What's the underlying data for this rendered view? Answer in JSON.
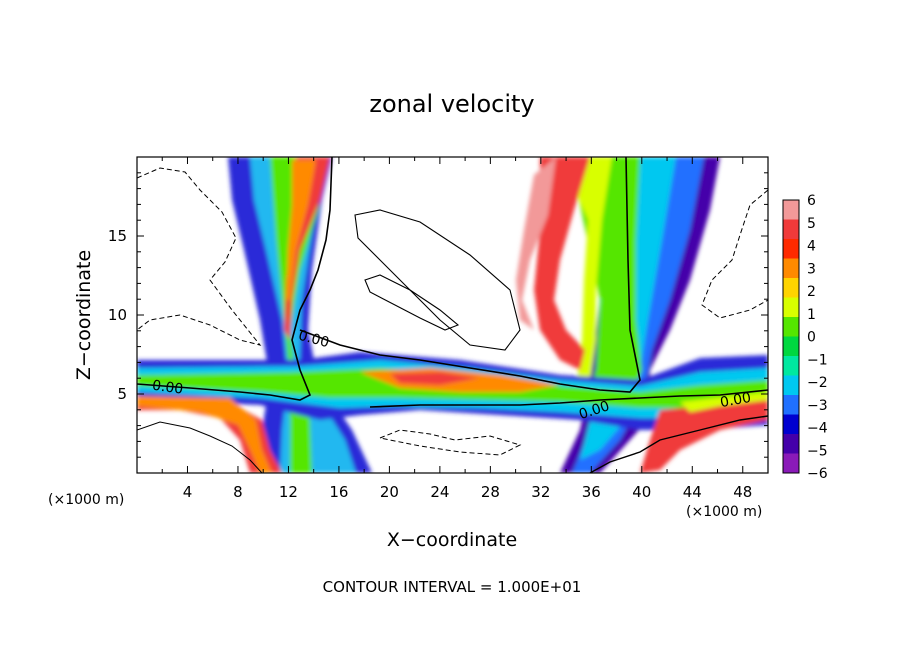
{
  "chart_data": {
    "type": "heatmap",
    "title": "zonal velocity",
    "xlabel": "X−coordinate",
    "ylabel": "Z−coordinate",
    "x_unit_left": "(×1000 m)",
    "x_unit_right": "(×1000 m)",
    "xlim": [
      0,
      50
    ],
    "ylim": [
      0,
      20
    ],
    "x_ticks": [
      4,
      8,
      12,
      16,
      20,
      24,
      28,
      32,
      36,
      40,
      44,
      48
    ],
    "x_tick_labels": [
      "4",
      "8",
      "12",
      "16",
      "20",
      "24",
      "28",
      "32",
      "36",
      "40",
      "44",
      "48"
    ],
    "y_ticks": [
      5,
      10,
      15
    ],
    "y_tick_labels": [
      "5",
      "10",
      "15"
    ],
    "colorbar": {
      "levels": [
        6,
        5,
        4,
        3,
        2,
        1,
        0,
        -1,
        -2,
        -3,
        -4,
        -5,
        -6
      ],
      "labels": [
        "6",
        "5",
        "4",
        "3",
        "2",
        "1",
        "0",
        "−1",
        "−2",
        "−3",
        "−4",
        "−5",
        "−6"
      ],
      "colors": [
        "#f29999",
        "#f03a3a",
        "#ff2a00",
        "#ff8a00",
        "#ffd400",
        "#d8ff00",
        "#55e600",
        "#00d840",
        "#00e8a0",
        "#00c8f0",
        "#2070ff",
        "#0000d0",
        "#4400aa",
        "#8a1ab8"
      ]
    },
    "contour_labels": [
      "0.00",
      "0.00",
      "0.00",
      "0.00"
    ],
    "footer": "CONTOUR INTERVAL = 1.000E+01"
  }
}
